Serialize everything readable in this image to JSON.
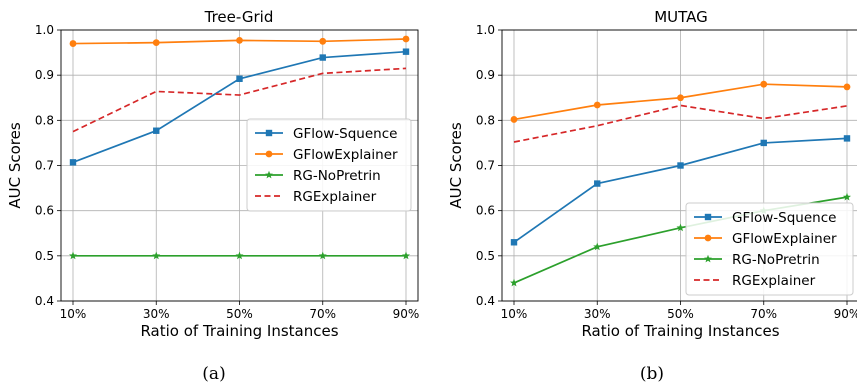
{
  "chart_data": [
    {
      "type": "line",
      "title": "Tree-Grid",
      "xlabel": "Ratio of Training Instances",
      "ylabel": "AUC Scores",
      "caption": "(a)",
      "categories": [
        "10%",
        "30%",
        "50%",
        "70%",
        "90%"
      ],
      "ylim": [
        0.4,
        1.0
      ],
      "yticks": [
        "0.4",
        "0.5",
        "0.6",
        "0.7",
        "0.8",
        "0.9",
        "1.0"
      ],
      "grid": true,
      "legend_position": "center-right",
      "series": [
        {
          "name": "GFlow-Squence",
          "color": "#1f77b4",
          "marker": "square",
          "dashed": false,
          "values": [
            0.707,
            0.777,
            0.892,
            0.939,
            0.952
          ]
        },
        {
          "name": "GFlowExplainer",
          "color": "#ff7f0e",
          "marker": "circle",
          "dashed": false,
          "values": [
            0.97,
            0.972,
            0.977,
            0.975,
            0.98
          ]
        },
        {
          "name": "RG-NoPretrin",
          "color": "#2ca02c",
          "marker": "star",
          "dashed": false,
          "values": [
            0.5,
            0.5,
            0.5,
            0.5,
            0.5
          ]
        },
        {
          "name": "RGExplainer",
          "color": "#d62728",
          "marker": "none",
          "dashed": true,
          "values": [
            0.775,
            0.864,
            0.856,
            0.904,
            0.915
          ]
        }
      ]
    },
    {
      "type": "line",
      "title": "MUTAG",
      "xlabel": "Ratio of Training Instances",
      "ylabel": "AUC Scores",
      "caption": "(b)",
      "categories": [
        "10%",
        "30%",
        "50%",
        "70%",
        "90%"
      ],
      "ylim": [
        0.4,
        1.0
      ],
      "yticks": [
        "0.4",
        "0.5",
        "0.6",
        "0.7",
        "0.8",
        "0.9",
        "1.0"
      ],
      "grid": true,
      "legend_position": "lower-right",
      "series": [
        {
          "name": "GFlow-Squence",
          "color": "#1f77b4",
          "marker": "square",
          "dashed": false,
          "values": [
            0.53,
            0.66,
            0.7,
            0.75,
            0.76
          ]
        },
        {
          "name": "GFlowExplainer",
          "color": "#ff7f0e",
          "marker": "circle",
          "dashed": false,
          "values": [
            0.802,
            0.834,
            0.85,
            0.88,
            0.874
          ]
        },
        {
          "name": "RG-NoPretrin",
          "color": "#2ca02c",
          "marker": "star",
          "dashed": false,
          "values": [
            0.44,
            0.52,
            0.562,
            0.6,
            0.63
          ]
        },
        {
          "name": "RGExplainer",
          "color": "#d62728",
          "marker": "none",
          "dashed": true,
          "values": [
            0.752,
            0.788,
            0.833,
            0.804,
            0.832
          ]
        }
      ]
    }
  ]
}
